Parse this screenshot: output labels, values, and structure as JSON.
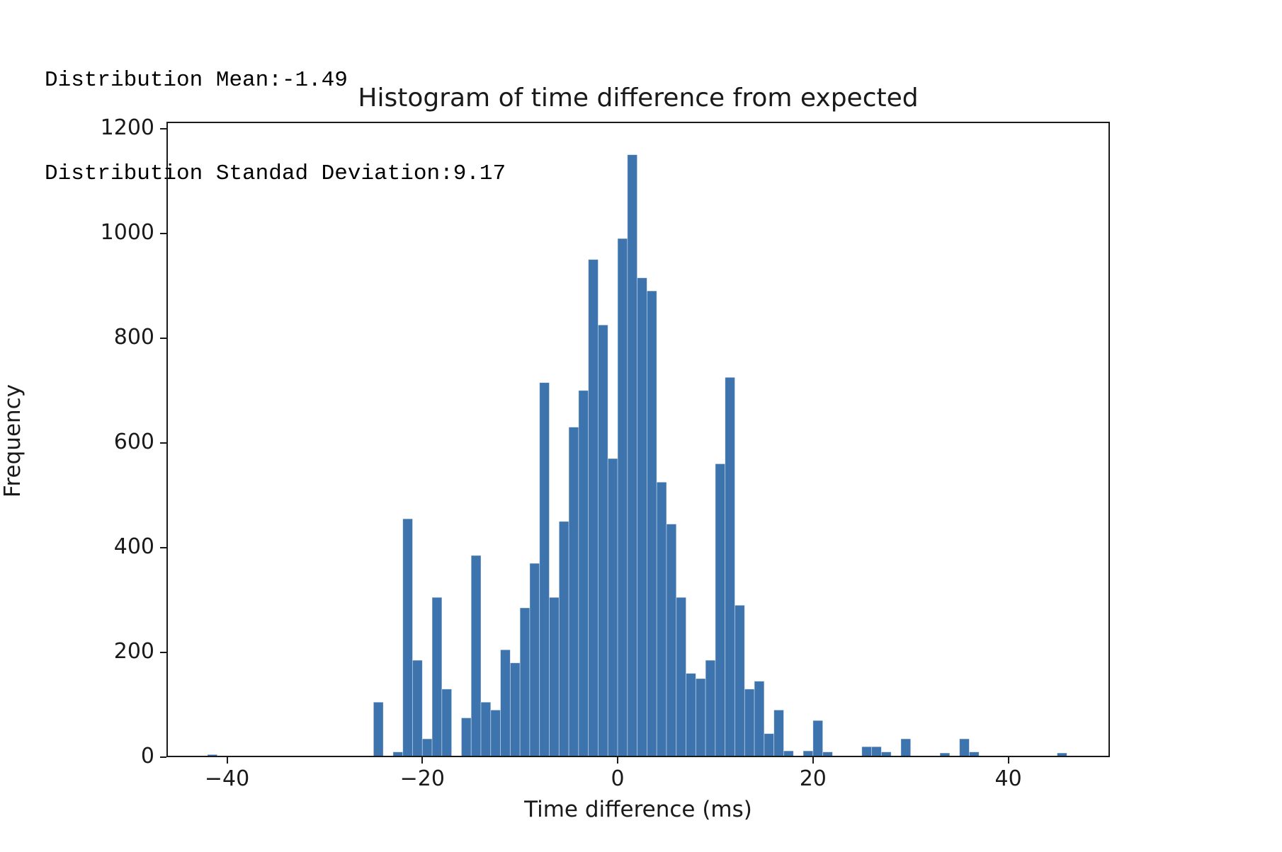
{
  "header": {
    "line1": "Distribution Mean:-1.49",
    "line2": "Distribution Standad Deviation:9.17"
  },
  "chart_data": {
    "type": "bar",
    "subtype": "histogram",
    "title": "Histogram of time difference from expected",
    "xlabel": "Time difference (ms)",
    "ylabel": "Frequency",
    "xlim": [
      -46.2,
      50.4
    ],
    "ylim": [
      0,
      1213
    ],
    "x_ticks": [
      -40,
      -20,
      0,
      20,
      40
    ],
    "y_ticks": [
      0,
      200,
      400,
      600,
      800,
      1000,
      1200
    ],
    "grid": false,
    "legend": "none",
    "bar_color": "#3e74ae",
    "bar_edge_color": "rgba(255,255,255,0.5)",
    "axis_color": "#1a1a1a",
    "bin_width_ms": 1,
    "bin_starts": [
      -42,
      -25,
      -23,
      -22,
      -21,
      -20,
      -19,
      -18,
      -16,
      -15,
      -14,
      -13,
      -12,
      -11,
      -10,
      -9,
      -8,
      -7,
      -6,
      -5,
      -4,
      -3,
      -2,
      -1,
      0,
      1,
      2,
      3,
      4,
      5,
      6,
      7,
      8,
      9,
      10,
      11,
      12,
      13,
      14,
      15,
      16,
      17,
      19,
      20,
      21,
      25,
      26,
      27,
      29,
      33,
      35,
      36,
      45
    ],
    "counts": [
      5,
      105,
      10,
      455,
      185,
      35,
      305,
      130,
      75,
      385,
      105,
      90,
      205,
      180,
      285,
      370,
      715,
      305,
      450,
      630,
      700,
      950,
      825,
      570,
      990,
      1150,
      915,
      890,
      525,
      445,
      305,
      160,
      150,
      185,
      560,
      725,
      290,
      130,
      145,
      45,
      90,
      12,
      12,
      70,
      10,
      20,
      20,
      10,
      35,
      8,
      35,
      10,
      8
    ]
  }
}
